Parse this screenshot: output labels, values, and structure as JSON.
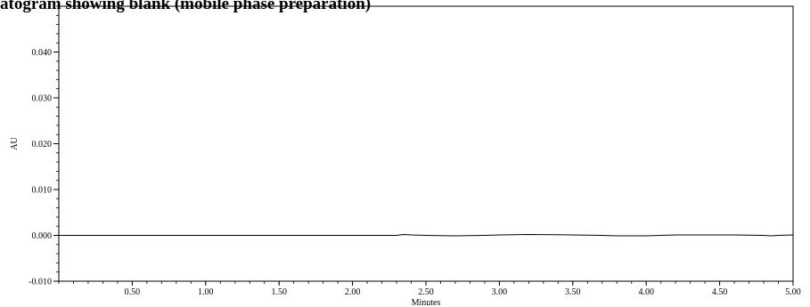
{
  "chart_data": {
    "type": "line",
    "title": "atogram showing blank (mobile phase preparation)",
    "xlabel": "Minutes",
    "ylabel": "AU",
    "xlim": [
      0.0,
      5.0
    ],
    "ylim": [
      -0.01,
      0.05
    ],
    "x_ticks": [
      0.5,
      1.0,
      1.5,
      2.0,
      2.5,
      3.0,
      3.5,
      4.0,
      4.5,
      5.0
    ],
    "x_tick_labels": [
      "0.50",
      "1.00",
      "1.50",
      "2.00",
      "2.50",
      "3.00",
      "3.50",
      "4.00",
      "4.50",
      "5.00"
    ],
    "y_ticks": [
      -0.01,
      0.0,
      0.01,
      0.02,
      0.03,
      0.04
    ],
    "y_tick_labels": [
      "-0.010",
      "0.000",
      "0.010",
      "0.020",
      "0.030",
      "0.040"
    ],
    "grid": false,
    "line_color": "#000000",
    "series": [
      {
        "x": [
          0.0,
          0.5,
          1.0,
          1.5,
          2.0,
          2.3,
          2.35,
          2.4,
          2.5,
          2.7,
          2.9,
          3.0,
          3.2,
          3.5,
          3.7,
          3.8,
          4.0,
          4.2,
          4.4,
          4.6,
          4.8,
          4.85,
          4.9,
          5.0
        ],
        "values": [
          0.0,
          0.0,
          0.0,
          0.0,
          0.0,
          0.0,
          0.0002,
          0.0001,
          0.0,
          -0.0001,
          0.0,
          0.0001,
          0.0002,
          0.0001,
          0.0,
          -0.0001,
          -0.0001,
          0.0001,
          0.0001,
          0.0001,
          0.0,
          -0.0001,
          0.0,
          0.0001
        ]
      }
    ]
  }
}
